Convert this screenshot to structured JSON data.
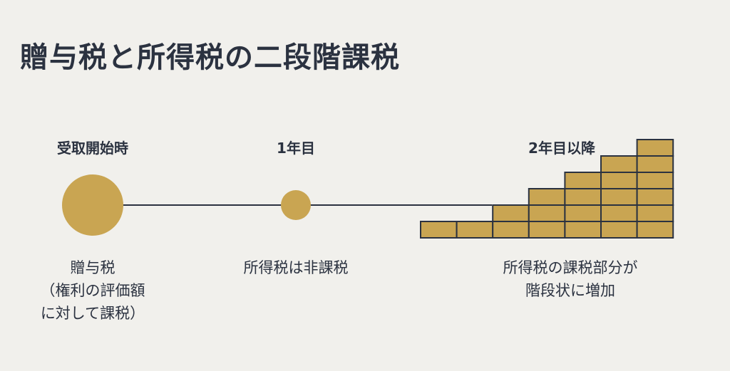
{
  "title": "贈与税と所得税の二段階課税",
  "colors": {
    "gold": "#c9a552",
    "line": "#2b3240",
    "background": "#f1f0ec"
  },
  "stages": [
    {
      "label": "受取開始時",
      "description": [
        "贈与税",
        "（権利の評価額",
        "に対して課税）"
      ]
    },
    {
      "label": "1年目",
      "description": [
        "所得税は非課税"
      ]
    },
    {
      "label": "2年目以降",
      "description": [
        "所得税の課税部分が",
        "階段状に増加"
      ]
    }
  ],
  "staircase": {
    "column_heights": [
      1,
      1,
      2,
      3,
      4,
      5,
      6
    ]
  }
}
